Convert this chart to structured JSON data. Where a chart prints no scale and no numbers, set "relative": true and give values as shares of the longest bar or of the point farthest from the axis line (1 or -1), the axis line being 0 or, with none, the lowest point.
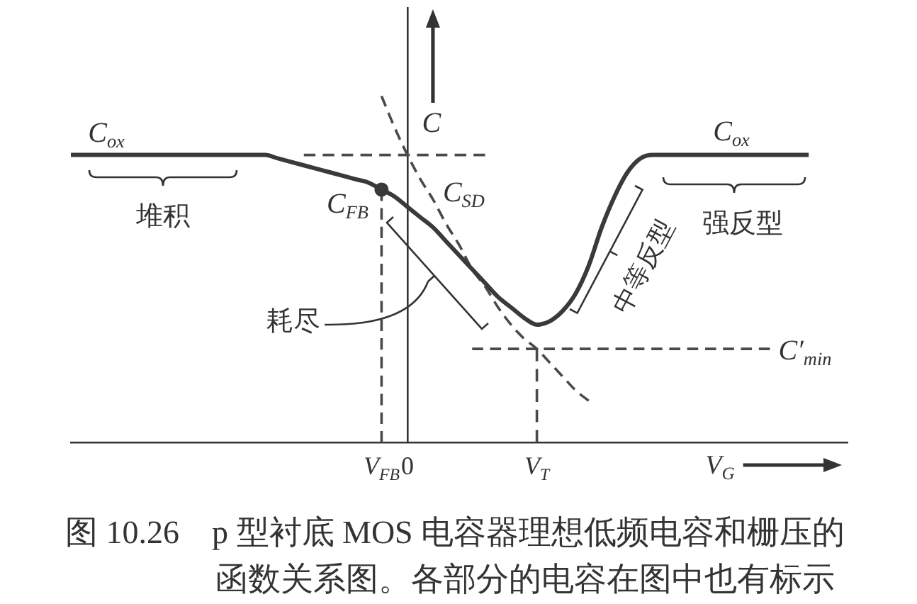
{
  "chart_data": {
    "type": "line",
    "xlabel": "V$_{G}$",
    "ylabel": "C",
    "relative": true,
    "tick_labels": "x",
    "categories": [
      null,
      null,
      null,
      null,
      null,
      null,
      null,
      null,
      null,
      null,
      null,
      null,
      null,
      null,
      null,
      null,
      null,
      null,
      null,
      null,
      null,
      null,
      null,
      null,
      "V$_{FB}$",
      null,
      "0",
      null,
      null,
      null,
      null,
      null,
      null,
      null,
      null,
      null,
      "V$_{T}$",
      null,
      null,
      null,
      null,
      null,
      null,
      null,
      null,
      null,
      null,
      null,
      null,
      null,
      null,
      null,
      null,
      null,
      null,
      null,
      null,
      null,
      null,
      null,
      null
    ],
    "series": [
      {
        "color": "#3a3a3a",
        "values": [
          0.83,
          0.83,
          0.83,
          0.83,
          0.83,
          0.83,
          0.83,
          0.83,
          0.83,
          0.83,
          0.83,
          0.83,
          0.83,
          0.83,
          0.83,
          0.83,
          0.82,
          0.81,
          0.8,
          0.79,
          0.78,
          0.77,
          0.76,
          0.75,
          0.73,
          0.71,
          0.68,
          0.65,
          0.62,
          0.58,
          0.54,
          0.5,
          0.46,
          0.42,
          0.39,
          0.36,
          0.34,
          0.35,
          0.38,
          0.43,
          0.51,
          0.62,
          0.71,
          0.78,
          0.82,
          0.83,
          0.83,
          0.83,
          0.83,
          0.83,
          0.83,
          0.83,
          0.83,
          0.83,
          0.83,
          0.83,
          0.83,
          0.83,
          null,
          null,
          null
        ]
      },
      {
        "name": "C$_{FB}$",
        "type": "scatter",
        "marker": "circle",
        "color": "#3a3a3a",
        "values": [
          null,
          null,
          null,
          null,
          null,
          null,
          null,
          null,
          null,
          null,
          null,
          null,
          null,
          null,
          null,
          null,
          null,
          null,
          null,
          null,
          null,
          null,
          null,
          null,
          0.73,
          null,
          null,
          null,
          null,
          null,
          null,
          null,
          null,
          null,
          null,
          null,
          null,
          null,
          null,
          null,
          null,
          null,
          null,
          null,
          null,
          null,
          null,
          null,
          null,
          null,
          null,
          null,
          null,
          null,
          null,
          null,
          null,
          null,
          null,
          null,
          null
        ]
      },
      {
        "name": "C$_{SD}$",
        "line_style": "dashed",
        "color": "#4a4a4a",
        "values": [
          null,
          null,
          null,
          null,
          null,
          null,
          null,
          null,
          null,
          null,
          null,
          null,
          null,
          null,
          null,
          null,
          null,
          null,
          null,
          null,
          null,
          null,
          null,
          null,
          1.0,
          0.91,
          0.83,
          0.76,
          0.7,
          0.63,
          0.57,
          0.5,
          0.45,
          0.39,
          0.34,
          0.3,
          0.27,
          0.23,
          0.19,
          0.15,
          0.12,
          null,
          null,
          null,
          null,
          null,
          null,
          null,
          null,
          null,
          null,
          null,
          null,
          null,
          null,
          null,
          null,
          null,
          null,
          null,
          null
        ]
      },
      {
        "line_style": "dashed",
        "color": "#4a4a4a",
        "values": [
          null,
          null,
          null,
          null,
          null,
          null,
          null,
          null,
          null,
          null,
          null,
          null,
          null,
          null,
          null,
          null,
          null,
          null,
          0.83,
          0.83,
          0.83,
          0.83,
          0.83,
          0.83,
          0.83,
          0.83,
          0.83,
          0.83,
          0.83,
          0.83,
          0.83,
          0.83,
          0.83,
          null,
          null,
          null,
          null,
          null,
          null,
          null,
          null,
          null,
          null,
          null,
          null,
          null,
          null,
          null,
          null,
          null,
          null,
          null,
          null,
          null,
          null,
          null,
          null,
          null,
          null,
          null,
          null
        ]
      },
      {
        "name": "C′$_{min}$",
        "line_style": "dashed",
        "color": "#4a4a4a",
        "values": [
          null,
          null,
          null,
          null,
          null,
          null,
          null,
          null,
          null,
          null,
          null,
          null,
          null,
          null,
          null,
          null,
          null,
          null,
          null,
          null,
          null,
          null,
          null,
          null,
          null,
          null,
          null,
          null,
          null,
          null,
          null,
          0.27,
          0.27,
          0.27,
          0.27,
          0.27,
          0.27,
          0.27,
          0.27,
          0.27,
          0.27,
          0.27,
          0.27,
          0.27,
          0.27,
          0.27,
          0.27,
          0.27,
          0.27,
          0.27,
          0.27,
          0.27,
          0.27,
          0.27,
          0.27,
          null,
          null,
          null,
          null,
          null,
          null
        ]
      },
      {
        "line_style": "dashed",
        "color": "#4a4a4a",
        "x": [
          "V$_{FB}$",
          "V$_{FB}$"
        ],
        "values": [
          0,
          0.73
        ]
      },
      {
        "line_style": "dashed",
        "color": "#4a4a4a",
        "x": [
          "V$_{T}$",
          "V$_{T}$"
        ],
        "values": [
          0,
          0.27
        ]
      }
    ],
    "annotations": [
      "C$_{ox}$",
      "C$_{ox}$",
      "堆积",
      "耗尽",
      "中等反型",
      "强反型",
      "图 10.26　p 型衬底 MOS 电容器理想低频电容和栅压的函数关系图。各部分的电容在图中也有标示"
    ]
  }
}
